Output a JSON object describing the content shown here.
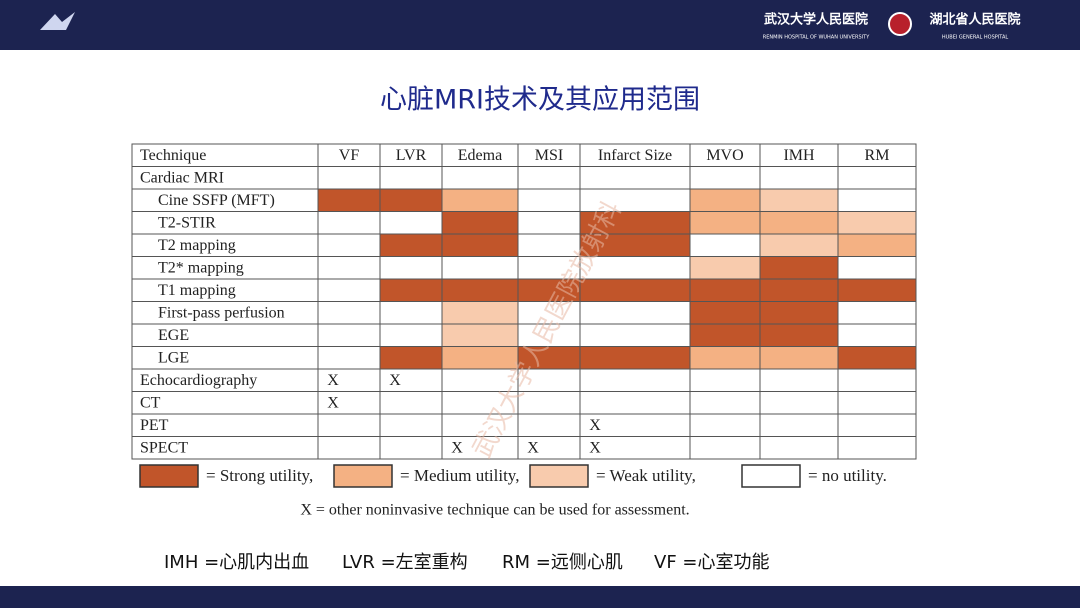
{
  "header": {
    "hospital_1": "武汉大学人民医院",
    "hospital_1_en": "RENMIN HOSPITAL OF WUHAN UNIVERSITY",
    "hospital_2": "湖北省人民医院",
    "hospital_2_en": "HUBEI GENERAL HOSPITAL"
  },
  "title": "心脏MRI技术及其应用范围",
  "watermark": "武汉大学人民医院放射科",
  "table": {
    "columns": [
      "Technique",
      "VF",
      "LVR",
      "Edema",
      "MSI",
      "Infarct Size",
      "MVO",
      "IMH",
      "RM"
    ],
    "rows": [
      {
        "label": "Cardiac MRI",
        "indent": 0,
        "fills": [
          "#ffffff",
          "#ffffff",
          "#ffffff",
          "#ffffff",
          "#ffffff",
          "#ffffff",
          "#ffffff",
          "#ffffff"
        ],
        "marks": [
          null,
          null,
          null,
          null,
          null,
          null,
          null,
          null
        ]
      },
      {
        "label": "Cine SSFP (MFT)",
        "indent": 1,
        "fills": [
          "#c1552a",
          "#c1552a",
          "#f4b183",
          "#ffffff",
          "#ffffff",
          "#f4b183",
          "#f8cbad",
          "#ffffff"
        ],
        "marks": [
          null,
          null,
          null,
          null,
          null,
          null,
          null,
          null
        ]
      },
      {
        "label": "T2-STIR",
        "indent": 1,
        "fills": [
          "#ffffff",
          "#ffffff",
          "#c1552a",
          "#ffffff",
          "#c1552a",
          "#f4b183",
          "#f4b183",
          "#f8cbad"
        ],
        "marks": [
          null,
          null,
          null,
          null,
          null,
          null,
          null,
          null
        ]
      },
      {
        "label": "T2 mapping",
        "indent": 1,
        "fills": [
          "#ffffff",
          "#c1552a",
          "#c1552a",
          "#ffffff",
          "#c1552a",
          "#ffffff",
          "#f8cbad",
          "#f4b183"
        ],
        "marks": [
          null,
          null,
          null,
          null,
          null,
          null,
          null,
          null
        ]
      },
      {
        "label": "T2* mapping",
        "indent": 1,
        "fills": [
          "#ffffff",
          "#ffffff",
          "#ffffff",
          "#ffffff",
          "#ffffff",
          "#f8cbad",
          "#c1552a",
          "#ffffff"
        ],
        "marks": [
          null,
          null,
          null,
          null,
          null,
          null,
          null,
          null
        ]
      },
      {
        "label": "T1 mapping",
        "indent": 1,
        "fills": [
          "#ffffff",
          "#c1552a",
          "#c1552a",
          "#c1552a",
          "#c1552a",
          "#c1552a",
          "#c1552a",
          "#c1552a"
        ],
        "marks": [
          null,
          null,
          null,
          null,
          null,
          null,
          null,
          null
        ]
      },
      {
        "label": "First-pass perfusion",
        "indent": 1,
        "fills": [
          "#ffffff",
          "#ffffff",
          "#f8cbad",
          "#ffffff",
          "#ffffff",
          "#c1552a",
          "#c1552a",
          "#ffffff"
        ],
        "marks": [
          null,
          null,
          null,
          null,
          null,
          null,
          null,
          null
        ]
      },
      {
        "label": "EGE",
        "indent": 1,
        "fills": [
          "#ffffff",
          "#ffffff",
          "#f8cbad",
          "#ffffff",
          "#ffffff",
          "#c1552a",
          "#c1552a",
          "#ffffff"
        ],
        "marks": [
          null,
          null,
          null,
          null,
          null,
          null,
          null,
          null
        ]
      },
      {
        "label": "LGE",
        "indent": 1,
        "fills": [
          "#ffffff",
          "#c1552a",
          "#f4b183",
          "#c1552a",
          "#c1552a",
          "#f4b183",
          "#f4b183",
          "#c1552a"
        ],
        "marks": [
          null,
          null,
          null,
          null,
          null,
          null,
          null,
          null
        ]
      },
      {
        "label": "Echocardiography",
        "indent": 0,
        "fills": [
          "#ffffff",
          "#ffffff",
          "#ffffff",
          "#ffffff",
          "#ffffff",
          "#ffffff",
          "#ffffff",
          "#ffffff"
        ],
        "marks": [
          "X",
          "X",
          null,
          null,
          null,
          null,
          null,
          null
        ]
      },
      {
        "label": "CT",
        "indent": 0,
        "fills": [
          "#ffffff",
          "#ffffff",
          "#ffffff",
          "#ffffff",
          "#ffffff",
          "#ffffff",
          "#ffffff",
          "#ffffff"
        ],
        "marks": [
          "X",
          null,
          null,
          null,
          null,
          null,
          null,
          null
        ]
      },
      {
        "label": "PET",
        "indent": 0,
        "fills": [
          "#ffffff",
          "#ffffff",
          "#ffffff",
          "#ffffff",
          "#ffffff",
          "#ffffff",
          "#ffffff",
          "#ffffff"
        ],
        "marks": [
          null,
          null,
          null,
          null,
          "X",
          null,
          null,
          null
        ]
      },
      {
        "label": "SPECT",
        "indent": 0,
        "fills": [
          "#ffffff",
          "#ffffff",
          "#ffffff",
          "#ffffff",
          "#ffffff",
          "#ffffff",
          "#ffffff",
          "#ffffff"
        ],
        "marks": [
          null,
          null,
          "X",
          "X",
          "X",
          null,
          null,
          null
        ]
      }
    ]
  },
  "legend": [
    {
      "label": "= Strong utility,",
      "color": "#c1552a"
    },
    {
      "label": "= Medium utility,",
      "color": "#f4b183"
    },
    {
      "label": "= Weak utility,",
      "color": "#f8cbad"
    },
    {
      "label": "= no utility.",
      "color": "#ffffff"
    }
  ],
  "note": "X = other noninvasive technique can be used for assessment.",
  "abbreviations": [
    "IMH =心肌内出血",
    "LVR =左室重构",
    "RM =远侧心肌",
    "VF =心室功能"
  ]
}
